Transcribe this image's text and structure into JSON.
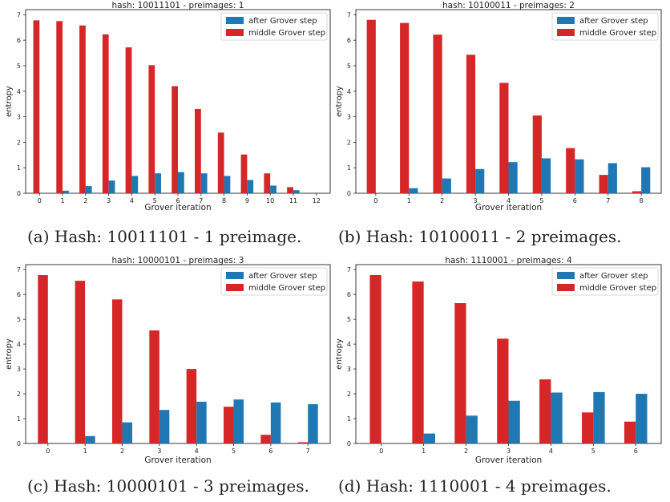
{
  "colors": {
    "after": "#1f77b4",
    "middle": "#d62728"
  },
  "legend": {
    "after_label": "after Grover step",
    "middle_label": "middle Grover step"
  },
  "chart_data": [
    {
      "type": "bar",
      "title": "hash: 10011101 - preimages: 1",
      "caption": "(a) Hash: 10011101 - 1 preimage.",
      "xlabel": "Grover iteration",
      "ylabel": "entropy",
      "ylim": [
        0,
        7.2
      ],
      "yticks": [
        0,
        1,
        2,
        3,
        4,
        5,
        6,
        7
      ],
      "categories": [
        "0",
        "1",
        "2",
        "3",
        "4",
        "5",
        "6",
        "7",
        "8",
        "9",
        "10",
        "11",
        "12"
      ],
      "series": [
        {
          "name": "after Grover step",
          "values": [
            0,
            0.1,
            0.28,
            0.5,
            0.68,
            0.78,
            0.83,
            0.78,
            0.68,
            0.52,
            0.3,
            0.12,
            0
          ]
        },
        {
          "name": "middle Grover step",
          "values": [
            6.78,
            6.75,
            6.58,
            6.23,
            5.72,
            5.02,
            4.2,
            3.3,
            2.38,
            1.52,
            0.78,
            0.24,
            0
          ]
        }
      ],
      "legend_position": "top-right"
    },
    {
      "type": "bar",
      "title": "hash: 10100011 - preimages: 2",
      "caption": "(b) Hash: 10100011 - 2 preimages.",
      "xlabel": "Grover iteration",
      "ylabel": "entropy",
      "ylim": [
        0,
        7.2
      ],
      "yticks": [
        0,
        1,
        2,
        3,
        4,
        5,
        6,
        7
      ],
      "categories": [
        "0",
        "1",
        "2",
        "3",
        "4",
        "5",
        "6",
        "7",
        "8"
      ],
      "series": [
        {
          "name": "after Grover step",
          "values": [
            0,
            0.2,
            0.58,
            0.95,
            1.22,
            1.37,
            1.33,
            1.18,
            1.02
          ]
        },
        {
          "name": "middle Grover step",
          "values": [
            6.8,
            6.68,
            6.22,
            5.43,
            4.33,
            3.05,
            1.77,
            0.72,
            0.08
          ]
        }
      ],
      "legend_position": "top-right"
    },
    {
      "type": "bar",
      "title": "hash: 10000101 - preimages: 3",
      "caption": "(c) Hash: 10000101 - 3 preimages.",
      "xlabel": "Grover iteration",
      "ylabel": "entropy",
      "ylim": [
        0,
        7.2
      ],
      "yticks": [
        0,
        1,
        2,
        3,
        4,
        5,
        6,
        7
      ],
      "categories": [
        "0",
        "1",
        "2",
        "3",
        "4",
        "5",
        "6",
        "7"
      ],
      "series": [
        {
          "name": "after Grover step",
          "values": [
            0,
            0.3,
            0.85,
            1.35,
            1.68,
            1.77,
            1.65,
            1.58
          ]
        },
        {
          "name": "middle Grover step",
          "values": [
            6.78,
            6.55,
            5.8,
            4.55,
            3.0,
            1.48,
            0.35,
            0.05
          ]
        }
      ],
      "legend_position": "top-right"
    },
    {
      "type": "bar",
      "title": "hash: 1110001 - preimages: 4",
      "caption": "(d) Hash: 1110001 - 4 preimages.",
      "xlabel": "Grover iteration",
      "ylabel": "entropy",
      "ylim": [
        0,
        7.2
      ],
      "yticks": [
        0,
        1,
        2,
        3,
        4,
        5,
        6,
        7
      ],
      "categories": [
        "0",
        "1",
        "2",
        "3",
        "4",
        "5",
        "6"
      ],
      "series": [
        {
          "name": "after Grover step",
          "values": [
            0,
            0.4,
            1.12,
            1.72,
            2.05,
            2.07,
            2.0
          ]
        },
        {
          "name": "middle Grover step",
          "values": [
            6.78,
            6.52,
            5.65,
            4.22,
            2.58,
            1.25,
            0.88
          ]
        }
      ],
      "legend_position": "top-right"
    }
  ]
}
